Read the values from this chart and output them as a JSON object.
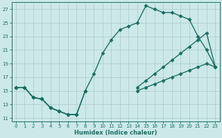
{
  "xlabel": "Humidex (Indice chaleur)",
  "bg_color": "#cce8e8",
  "grid_color": "#b0d0d0",
  "line_color": "#1a6e64",
  "xlim": [
    -0.5,
    23.5
  ],
  "ylim": [
    10.5,
    28.0
  ],
  "xticks": [
    0,
    1,
    2,
    3,
    4,
    5,
    6,
    7,
    8,
    9,
    10,
    11,
    12,
    13,
    14,
    15,
    16,
    17,
    18,
    19,
    20,
    21,
    22,
    23
  ],
  "yticks": [
    11,
    13,
    15,
    17,
    19,
    21,
    23,
    25,
    27
  ],
  "line1_x": [
    0,
    1,
    2,
    3,
    4,
    5,
    6,
    7,
    8,
    9,
    10,
    11,
    12,
    13,
    14,
    15,
    16,
    17,
    18,
    19,
    20,
    21,
    22,
    23
  ],
  "line1_y": [
    15.5,
    15.5,
    14.0,
    13.8,
    12.5,
    12.0,
    11.5,
    11.5,
    15.0,
    17.5,
    20.5,
    22.5,
    24.0,
    24.5,
    25.0,
    27.5,
    27.0,
    26.5,
    26.5,
    26.0,
    25.5,
    23.0,
    21.0,
    18.5
  ],
  "line2_x": [
    0,
    1,
    2,
    3,
    4,
    5,
    6,
    7,
    8,
    9,
    10,
    11,
    12,
    13,
    14,
    15,
    16,
    17,
    18,
    19,
    20,
    21,
    22,
    23
  ],
  "line2_y": [
    15.5,
    15.5,
    14.0,
    13.8,
    12.5,
    12.0,
    11.5,
    11.5,
    15.0,
    null,
    null,
    null,
    null,
    null,
    15.5,
    16.5,
    17.5,
    18.5,
    19.5,
    20.5,
    21.5,
    22.5,
    23.5,
    18.5
  ],
  "line3_x": [
    0,
    1,
    2,
    3,
    4,
    5,
    6,
    7,
    8,
    9,
    10,
    11,
    12,
    13,
    14,
    15,
    16,
    17,
    18,
    19,
    20,
    21,
    22,
    23
  ],
  "line3_y": [
    15.5,
    15.5,
    14.0,
    13.8,
    12.5,
    12.0,
    11.5,
    11.5,
    null,
    null,
    null,
    null,
    null,
    null,
    15.0,
    15.5,
    16.0,
    16.5,
    17.0,
    17.5,
    18.0,
    18.5,
    19.0,
    18.5
  ],
  "marker": "D",
  "markersize": 2.5,
  "linewidth": 1.0
}
